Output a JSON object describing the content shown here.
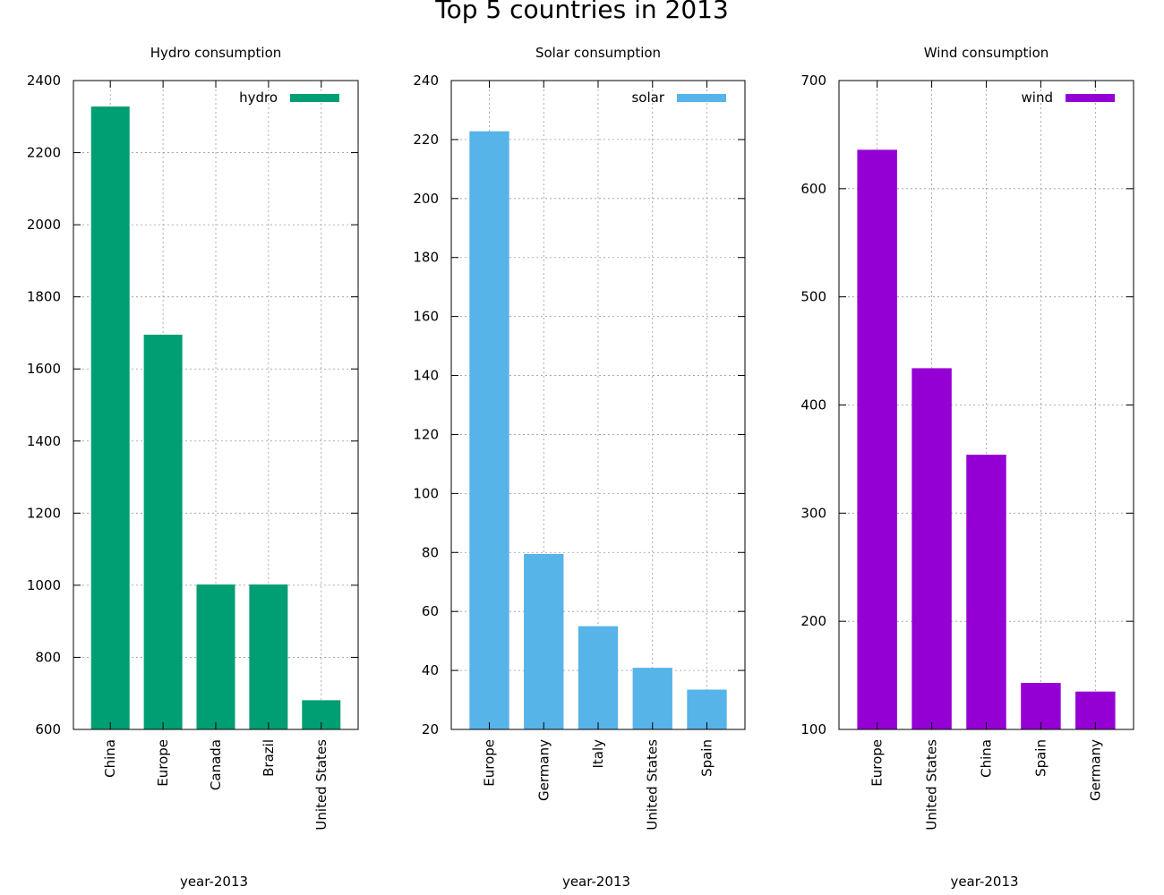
{
  "title": "Top 5 countries in 2013",
  "chart_data": [
    {
      "type": "bar",
      "title": "Hydro consumption",
      "xlabel": "year-2013",
      "ylabel": "",
      "categories": [
        "China",
        "Europe",
        "Canada",
        "Brazil",
        "United States"
      ],
      "series": [
        {
          "name": "hydro",
          "values": [
            2328,
            1695,
            1002,
            1002,
            681
          ]
        }
      ],
      "ylim": [
        600,
        2400
      ],
      "yticks": [
        600,
        800,
        1000,
        1200,
        1400,
        1600,
        1800,
        2000,
        2200,
        2400
      ],
      "color": "#009e73",
      "grid": true,
      "legend": "top-right"
    },
    {
      "type": "bar",
      "title": "Solar consumption",
      "xlabel": "year-2013",
      "ylabel": "",
      "categories": [
        "Europe",
        "Germany",
        "Italy",
        "United States",
        "Spain"
      ],
      "series": [
        {
          "name": "solar",
          "values": [
            222.8,
            79.5,
            55.0,
            40.9,
            33.5
          ]
        }
      ],
      "ylim": [
        20,
        240
      ],
      "yticks": [
        20,
        40,
        60,
        80,
        100,
        120,
        140,
        160,
        180,
        200,
        220,
        240
      ],
      "color": "#56b4e9",
      "grid": true,
      "legend": "top-right"
    },
    {
      "type": "bar",
      "title": "Wind consumption",
      "xlabel": "year-2013",
      "ylabel": "",
      "categories": [
        "Europe",
        "United States",
        "China",
        "Spain",
        "Germany"
      ],
      "series": [
        {
          "name": "wind",
          "values": [
            636,
            434,
            354,
            143,
            135
          ]
        }
      ],
      "ylim": [
        100,
        700
      ],
      "yticks": [
        100,
        200,
        300,
        400,
        500,
        600,
        700
      ],
      "color": "#9400d3",
      "grid": true,
      "legend": "top-right"
    }
  ]
}
